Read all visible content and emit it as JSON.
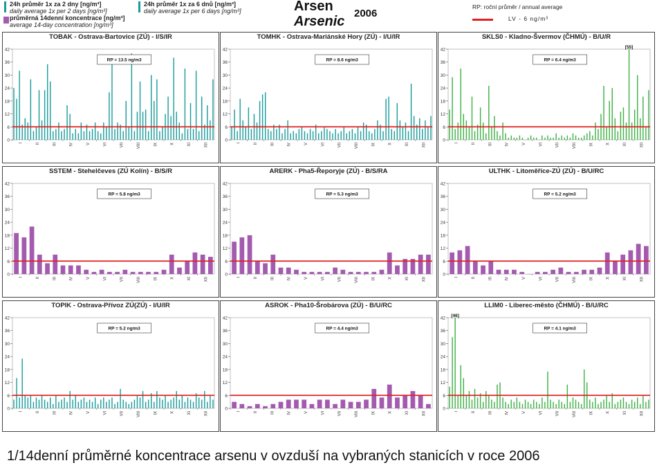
{
  "header": {
    "title_cz": "Arsen",
    "title_en": "Arsenic",
    "year": "2006",
    "legend": {
      "item1_line1": "24h průměr 1x za 2 dny [ng/m³]",
      "item1_line2": "daily average 1x per 2 days [ng/m³]",
      "item2_line1": "průměrná 14denní koncentrace [ng/m³]",
      "item2_line2": "average 14-day concentration [ng/m³]",
      "item3_line1": "24h průměr 1x za 6 dnů [ng/m³]",
      "item3_line2": "daily average 1x per 6 days [ng/m³]",
      "rp_line": "RP: roční průměr / annual average",
      "lv_label": "LV   - 6 ng/m³"
    },
    "colors": {
      "teal": "#1a9a9a",
      "purple": "#a45aaf",
      "green": "#3cb043",
      "limit": "#e02020"
    }
  },
  "caption": "1/14denní průměrné koncentrace arsenu v ovzduší na vybraných stanicích v roce 2006",
  "chart_data": [
    {
      "type": "bar",
      "title": "TOBAK - Ostrava-Bartovice (ZÚ) - I/S/IR",
      "series_type": "daily-2",
      "color": "#1a9a9a",
      "rp": "RP = 13.5 ng/m3",
      "max_label": "",
      "limit": 6,
      "ylim": [
        0,
        42
      ],
      "yticks": [
        0,
        6,
        12,
        18,
        24,
        30,
        36,
        42
      ],
      "months": [
        "I",
        "II",
        "III",
        "IV",
        "V",
        "VI",
        "VII",
        "VIII",
        "IX",
        "X",
        "XI",
        "XII"
      ],
      "values": [
        24,
        19,
        32,
        7,
        10,
        8,
        28,
        4,
        6,
        23,
        9,
        23,
        35,
        27,
        4,
        5,
        8,
        4,
        5,
        16,
        12,
        3,
        5,
        3,
        8,
        4,
        7,
        4,
        5,
        8,
        4,
        3,
        8,
        6,
        22,
        35,
        5,
        8,
        7,
        4,
        18,
        6,
        40,
        4,
        13,
        27,
        13,
        14,
        4,
        30,
        18,
        28,
        4,
        6,
        12,
        20,
        11,
        38,
        13,
        8,
        3,
        33,
        5,
        17,
        5,
        32,
        4,
        20,
        7,
        16,
        9,
        28
      ]
    },
    {
      "type": "bar",
      "title": "TOMHK - Ostrava-Mariánské Hory (ZÚ) - I/U/IR",
      "series_type": "daily-2",
      "color": "#1a9a9a",
      "rp": "RP = 8.6 ng/m3",
      "max_label": "",
      "limit": 6,
      "ylim": [
        0,
        42
      ],
      "yticks": [
        0,
        6,
        12,
        18,
        24,
        30,
        36,
        42
      ],
      "months": [
        "I",
        "II",
        "III",
        "IV",
        "V",
        "VI",
        "VII",
        "VIII",
        "IX",
        "X",
        "XI",
        "XII"
      ],
      "values": [
        6,
        14,
        4,
        19,
        9,
        6,
        15,
        5,
        12,
        8,
        18,
        21,
        22,
        5,
        4,
        7,
        5,
        7,
        3,
        5,
        9,
        3,
        4,
        3,
        5,
        6,
        4,
        3,
        5,
        4,
        7,
        3,
        4,
        6,
        5,
        4,
        3,
        5,
        3,
        4,
        6,
        3,
        4,
        5,
        3,
        6,
        4,
        8,
        7,
        4,
        3,
        5,
        9,
        7,
        4,
        19,
        20,
        5,
        4,
        17,
        9,
        6,
        8,
        4,
        26,
        11,
        7,
        10,
        5,
        9,
        6,
        11
      ]
    },
    {
      "type": "bar",
      "title": "SKLS0 - Kladno-Švermov (ČHMÚ) - B/U/R",
      "series_type": "daily-1",
      "color": "#3cb043",
      "rp": "RP = 6.4 ng/m3",
      "max_label": "[55]",
      "limit": 6,
      "ylim": [
        0,
        42
      ],
      "yticks": [
        0,
        6,
        12,
        18,
        24,
        30,
        36,
        42
      ],
      "months": [
        "I",
        "II",
        "III",
        "IV",
        "V",
        "VI",
        "VII",
        "VIII",
        "IX",
        "X",
        "XI",
        "XII"
      ],
      "values": [
        14,
        29,
        5,
        8,
        33,
        12,
        9,
        6,
        20,
        4,
        7,
        15,
        8,
        3,
        25,
        6,
        11,
        4,
        2,
        8,
        3,
        1,
        2,
        1,
        1,
        2,
        1,
        0,
        1,
        2,
        1,
        1,
        0,
        2,
        1,
        2,
        1,
        1,
        3,
        1,
        2,
        1,
        2,
        1,
        3,
        2,
        1,
        1,
        2,
        3,
        4,
        2,
        8,
        5,
        12,
        25,
        6,
        18,
        24,
        10,
        4,
        13,
        15,
        8,
        42,
        8,
        14,
        30,
        10,
        20,
        6,
        23
      ]
    },
    {
      "type": "bar",
      "title": "SSTEM - Stehelčeves (ZÚ Kolín) - B/S/R",
      "series_type": "avg-14",
      "color": "#a45aaf",
      "rp": "RP = 5.8 ng/m3",
      "max_label": "",
      "limit": 6,
      "ylim": [
        0,
        42
      ],
      "yticks": [
        0,
        6,
        12,
        18,
        24,
        30,
        36,
        42
      ],
      "months": [
        "I",
        "II",
        "III",
        "IV",
        "V",
        "VI",
        "VII",
        "VIII",
        "IX",
        "X",
        "XI",
        "XII"
      ],
      "values": [
        19,
        17,
        22,
        9,
        5,
        9,
        4,
        4,
        4,
        2,
        1,
        2,
        1,
        1,
        2,
        1,
        1,
        1,
        1,
        2,
        9,
        3,
        6,
        10,
        9,
        8
      ]
    },
    {
      "type": "bar",
      "title": "ARERK - Pha5-Řeporyje (ZÚ) - B/S/RA",
      "series_type": "avg-14",
      "color": "#a45aaf",
      "rp": "RP = 5.3 ng/m3",
      "max_label": "",
      "limit": 6,
      "ylim": [
        0,
        42
      ],
      "yticks": [
        0,
        6,
        12,
        18,
        24,
        30,
        36,
        42
      ],
      "months": [
        "I",
        "II",
        "III",
        "IV",
        "V",
        "VI",
        "VII",
        "VIII",
        "IX",
        "X",
        "XI",
        "XII"
      ],
      "values": [
        15,
        17,
        18,
        6,
        5,
        9,
        3,
        3,
        2,
        1,
        1,
        1,
        1,
        3,
        2,
        1,
        1,
        1,
        1,
        2,
        10,
        4,
        7,
        7,
        9,
        9
      ]
    },
    {
      "type": "bar",
      "title": "ULTHK - Litoměřice-ZÚ (ZÚ) - B/U/RC",
      "series_type": "avg-14",
      "color": "#a45aaf",
      "rp": "RP = 5.2 ng/m3",
      "max_label": "",
      "limit": 6,
      "ylim": [
        0,
        42
      ],
      "yticks": [
        0,
        6,
        12,
        18,
        24,
        30,
        36,
        42
      ],
      "months": [
        "I",
        "II",
        "III",
        "IV",
        "V",
        "VI",
        "VII",
        "VIII",
        "IX",
        "X",
        "XI",
        "XII"
      ],
      "values": [
        10,
        11,
        13,
        6,
        4,
        6,
        2,
        2,
        2,
        1,
        0,
        1,
        1,
        2,
        3,
        1,
        1,
        2,
        2,
        3,
        10,
        6,
        9,
        11,
        14,
        13
      ]
    },
    {
      "type": "bar",
      "title": "TOPIK - Ostrava-Přívoz ZÚ(ZÚ) - I/U/IR",
      "series_type": "daily-2",
      "color": "#1a9a9a",
      "rp": "RP = 5.2 ng/m3",
      "max_label": "",
      "limit": 6,
      "ylim": [
        0,
        42
      ],
      "yticks": [
        0,
        6,
        12,
        18,
        24,
        30,
        36,
        42
      ],
      "months": [
        "I",
        "II",
        "III",
        "IV",
        "V",
        "VI",
        "VII",
        "VIII",
        "IX",
        "X",
        "XI",
        "XII"
      ],
      "values": [
        4,
        14,
        5,
        23,
        6,
        5,
        6,
        3,
        5,
        4,
        6,
        4,
        3,
        5,
        2,
        6,
        3,
        4,
        5,
        3,
        8,
        4,
        6,
        3,
        4,
        5,
        3,
        4,
        3,
        5,
        2,
        4,
        5,
        3,
        4,
        5,
        2,
        3,
        9,
        4,
        3,
        2,
        3,
        4,
        6,
        5,
        8,
        3,
        4,
        7,
        3,
        8,
        5,
        4,
        6,
        3,
        4,
        5,
        8,
        4,
        6,
        3,
        5,
        4,
        3,
        7,
        5,
        4,
        8,
        3,
        6,
        4
      ]
    },
    {
      "type": "bar",
      "title": "ASROK - Pha10-Šrobárova (ZÚ) - B/U/RC",
      "series_type": "avg-14",
      "color": "#a45aaf",
      "rp": "RP = 4.4 ng/m3",
      "max_label": "",
      "limit": 6,
      "ylim": [
        0,
        42
      ],
      "yticks": [
        0,
        6,
        12,
        18,
        24,
        30,
        36,
        42
      ],
      "months": [
        "I",
        "II",
        "III",
        "IV",
        "V",
        "VI",
        "VII",
        "VIII",
        "IX",
        "X",
        "XI",
        "XII"
      ],
      "values": [
        3,
        2,
        1,
        2,
        1,
        2,
        3,
        4,
        4,
        4,
        2,
        4,
        4,
        2,
        4,
        3,
        3,
        4,
        9,
        5,
        11,
        5,
        6,
        8,
        6,
        2
      ]
    },
    {
      "type": "bar",
      "title": "LLIM0 - Liberec-město (ČHMÚ) - B/U/RC",
      "series_type": "daily-1",
      "color": "#3cb043",
      "rp": "RP = 4.1 ng/m3",
      "max_label": "[46]",
      "limit": 6,
      "ylim": [
        0,
        42
      ],
      "yticks": [
        0,
        6,
        12,
        18,
        24,
        30,
        36,
        42
      ],
      "months": [
        "I",
        "II",
        "III",
        "IV",
        "V",
        "VI",
        "VII",
        "VIII",
        "IX",
        "X",
        "XI",
        "XII"
      ],
      "values": [
        10,
        33,
        42,
        6,
        20,
        14,
        6,
        8,
        4,
        9,
        5,
        7,
        3,
        8,
        6,
        4,
        3,
        11,
        12,
        5,
        3,
        2,
        4,
        3,
        5,
        3,
        2,
        4,
        3,
        2,
        4,
        3,
        2,
        5,
        3,
        17,
        4,
        3,
        2,
        4,
        3,
        2,
        11,
        3,
        5,
        4,
        3,
        2,
        18,
        12,
        4,
        3,
        5,
        2,
        3,
        4,
        6,
        3,
        7,
        2,
        3,
        4,
        5,
        3,
        2,
        4,
        3,
        5,
        2,
        6,
        3,
        4
      ]
    }
  ]
}
